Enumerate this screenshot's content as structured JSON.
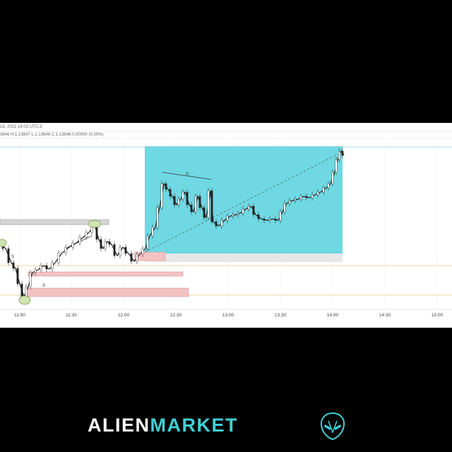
{
  "chart_header": {
    "date_line": "18, 2021 14:03 UTC-3",
    "ohlc_line": "3646 H:1.13647 L:1.13646 C:1.13646 0.00000 (0.00%)"
  },
  "chart_data": {
    "type": "line",
    "x_tick_labels": [
      "11:00",
      "11:30",
      "12:00",
      "12:30",
      "13:00",
      "13:30",
      "14:00",
      "14:30",
      "15:00"
    ],
    "annotations": [
      "S",
      "S",
      "S"
    ],
    "grid": true,
    "accent_color": "#6fd8e3",
    "zone_color": "#f4c2c2"
  },
  "brand": {
    "word1": "ALIEN",
    "word2": "MARKET",
    "logo_icon": "alien-head-icon",
    "accent": "#3fd0d4"
  }
}
